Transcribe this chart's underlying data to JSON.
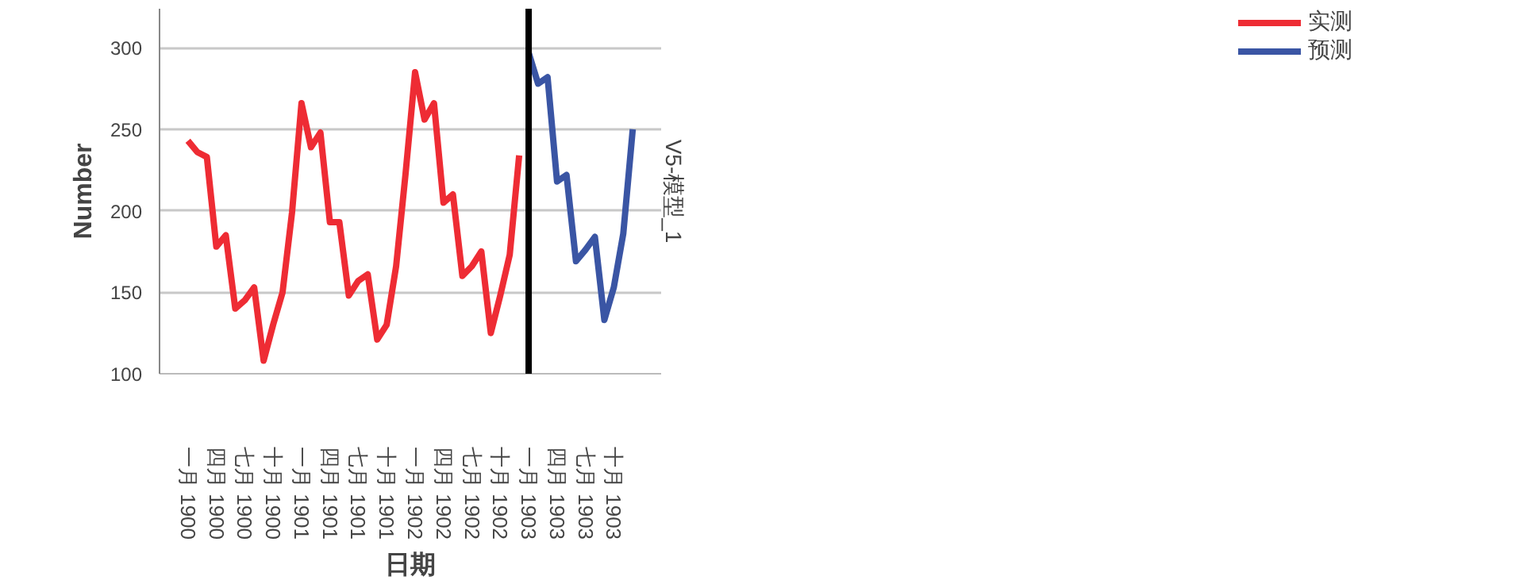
{
  "chart_data": {
    "type": "line",
    "xlabel": "日期",
    "ylabel": "Number",
    "annotations": [
      "V5-模型_1"
    ],
    "xlim": [
      "1899-10",
      "1904-03"
    ],
    "ylim": [
      100,
      324
    ],
    "yticks": [
      100,
      150,
      200,
      250,
      300
    ],
    "xticks": [
      {
        "value": "1900-01",
        "label": "一月 1900"
      },
      {
        "value": "1900-04",
        "label": "四月 1900"
      },
      {
        "value": "1900-07",
        "label": "七月 1900"
      },
      {
        "value": "1900-10",
        "label": "十月 1900"
      },
      {
        "value": "1901-01",
        "label": "一月 1901"
      },
      {
        "value": "1901-04",
        "label": "四月 1901"
      },
      {
        "value": "1901-07",
        "label": "七月 1901"
      },
      {
        "value": "1901-10",
        "label": "十月 1901"
      },
      {
        "value": "1902-01",
        "label": "一月 1902"
      },
      {
        "value": "1902-04",
        "label": "四月 1902"
      },
      {
        "value": "1902-07",
        "label": "七月 1902"
      },
      {
        "value": "1902-10",
        "label": "十月 1902"
      },
      {
        "value": "1903-01",
        "label": "一月 1903"
      },
      {
        "value": "1903-04",
        "label": "四月 1903"
      },
      {
        "value": "1903-07",
        "label": "七月 1903"
      },
      {
        "value": "1903-10",
        "label": "十月 1903"
      }
    ],
    "grid": "y",
    "legend": "top right",
    "ref_lines": [
      {
        "axis": "x",
        "value": "1903-01",
        "color": "#000000"
      }
    ],
    "series": [
      {
        "name": "实测",
        "color": "#ee2c34",
        "x": [
          "1900-01",
          "1900-02",
          "1900-03",
          "1900-04",
          "1900-05",
          "1900-06",
          "1900-07",
          "1900-08",
          "1900-09",
          "1900-10",
          "1900-11",
          "1900-12",
          "1901-01",
          "1901-02",
          "1901-03",
          "1901-04",
          "1901-05",
          "1901-06",
          "1901-07",
          "1901-08",
          "1901-09",
          "1901-10",
          "1901-11",
          "1901-12",
          "1902-01",
          "1902-02",
          "1902-03",
          "1902-04",
          "1902-05",
          "1902-06",
          "1902-07",
          "1902-08",
          "1902-09",
          "1902-10",
          "1902-11",
          "1902-12"
        ],
        "values": [
          243,
          236,
          233,
          178,
          185,
          140,
          145,
          153,
          108,
          130,
          150,
          199,
          266,
          239,
          248,
          193,
          193,
          148,
          157,
          161,
          121,
          130,
          166,
          223,
          285,
          256,
          266,
          205,
          210,
          160,
          166,
          175,
          125,
          148,
          173,
          234
        ]
      },
      {
        "name": "预测",
        "color": "#3a55a4",
        "x": [
          "1903-01",
          "1903-02",
          "1903-03",
          "1903-04",
          "1903-05",
          "1903-06",
          "1903-07",
          "1903-08",
          "1903-09",
          "1903-10",
          "1903-11",
          "1903-12"
        ],
        "values": [
          297,
          278,
          282,
          218,
          222,
          169,
          176,
          184,
          133,
          153,
          186,
          250
        ]
      }
    ]
  }
}
